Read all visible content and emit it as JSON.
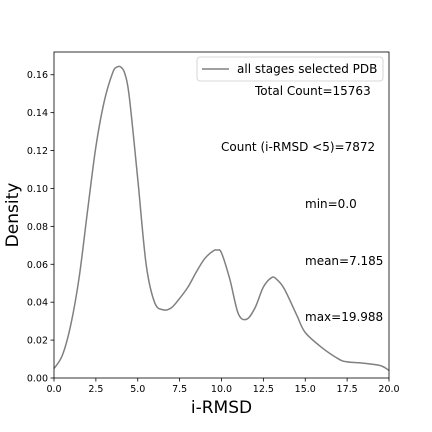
{
  "chart_data": {
    "type": "line",
    "title": "",
    "xlabel": "i-RMSD",
    "ylabel": "Density",
    "xlim": [
      0.0,
      20.0
    ],
    "ylim": [
      0.0,
      0.172
    ],
    "grid": false,
    "legend_placement": "top-right",
    "x_ticks": [
      "0.0",
      "2.5",
      "5.0",
      "7.5",
      "10.0",
      "12.5",
      "15.0",
      "17.5",
      "20.0"
    ],
    "y_ticks": [
      "0.00",
      "0.02",
      "0.04",
      "0.06",
      "0.08",
      "0.10",
      "0.12",
      "0.14",
      "0.16"
    ],
    "series": [
      {
        "name": "all stages selected PDB",
        "color": "#808080",
        "x": [
          0.0,
          0.5,
          1.0,
          1.5,
          2.0,
          2.5,
          3.0,
          3.5,
          3.75,
          4.0,
          4.25,
          4.5,
          5.0,
          5.5,
          6.0,
          6.5,
          7.0,
          7.5,
          8.0,
          8.5,
          9.0,
          9.5,
          9.75,
          10.0,
          10.5,
          11.0,
          11.5,
          12.0,
          12.5,
          13.0,
          13.3,
          13.75,
          14.5,
          15.0,
          16.0,
          17.0,
          17.5,
          18.5,
          19.5,
          20.0
        ],
        "y": [
          0.005,
          0.012,
          0.028,
          0.053,
          0.088,
          0.122,
          0.146,
          0.161,
          0.164,
          0.164,
          0.16,
          0.148,
          0.105,
          0.06,
          0.04,
          0.036,
          0.037,
          0.042,
          0.048,
          0.056,
          0.063,
          0.067,
          0.0675,
          0.066,
          0.052,
          0.034,
          0.031,
          0.037,
          0.048,
          0.053,
          0.052,
          0.047,
          0.033,
          0.024,
          0.016,
          0.01,
          0.0085,
          0.0078,
          0.0065,
          0.004
        ]
      }
    ],
    "annotations": {
      "total_count": "Total Count=15763",
      "count_lt5": "Count (i-RMSD <5)=7872",
      "min": "min=0.0",
      "mean": "mean=7.185",
      "max": "max=19.988"
    }
  }
}
